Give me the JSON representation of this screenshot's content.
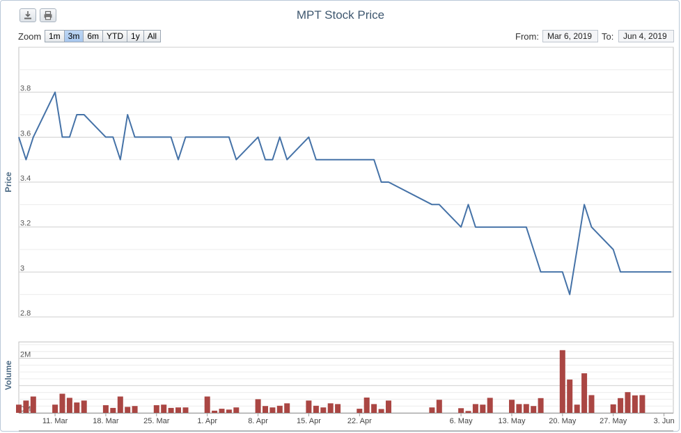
{
  "toolbar": {
    "download_icon": "download-icon",
    "print_icon": "print-icon"
  },
  "range_selector": {
    "zoom_label": "Zoom",
    "buttons": [
      "1m",
      "3m",
      "6m",
      "YTD",
      "1y",
      "All"
    ],
    "active": "3m",
    "from_label": "From:",
    "from_value": "Mar 6, 2019",
    "to_label": "To:",
    "to_value": "Jun 4, 2019"
  },
  "colors": {
    "price_line": "#4572a7",
    "volume_bar": "#aa4643",
    "grid": "#d8d8d8",
    "title": "#3e576f"
  },
  "chart_data": [
    {
      "type": "line",
      "title": "MPT Stock Price",
      "ylabel": "Price",
      "ylim": [
        2.8,
        4.0
      ],
      "yticks": [
        "2.8",
        "3",
        "3.2",
        "3.4",
        "3.6",
        "3.8"
      ],
      "grid": true,
      "x": [
        "2019-03-06",
        "2019-03-07",
        "2019-03-08",
        "2019-03-11",
        "2019-03-12",
        "2019-03-13",
        "2019-03-14",
        "2019-03-15",
        "2019-03-18",
        "2019-03-19",
        "2019-03-20",
        "2019-03-21",
        "2019-03-22",
        "2019-03-25",
        "2019-03-26",
        "2019-03-27",
        "2019-03-28",
        "2019-03-29",
        "2019-04-01",
        "2019-04-02",
        "2019-04-03",
        "2019-04-04",
        "2019-04-05",
        "2019-04-08",
        "2019-04-09",
        "2019-04-10",
        "2019-04-11",
        "2019-04-12",
        "2019-04-15",
        "2019-04-16",
        "2019-04-17",
        "2019-04-18",
        "2019-04-19",
        "2019-04-22",
        "2019-04-23",
        "2019-04-24",
        "2019-04-25",
        "2019-04-26",
        "2019-05-02",
        "2019-05-03",
        "2019-05-06",
        "2019-05-07",
        "2019-05-08",
        "2019-05-09",
        "2019-05-10",
        "2019-05-13",
        "2019-05-14",
        "2019-05-15",
        "2019-05-16",
        "2019-05-17",
        "2019-05-20",
        "2019-05-21",
        "2019-05-22",
        "2019-05-23",
        "2019-05-24",
        "2019-05-27",
        "2019-05-28",
        "2019-05-29",
        "2019-05-30",
        "2019-05-31",
        "2019-06-03",
        "2019-06-04"
      ],
      "series": [
        {
          "values": [
            3.6,
            3.5,
            3.6,
            3.8,
            3.6,
            3.6,
            3.7,
            3.7,
            3.6,
            3.6,
            3.5,
            3.7,
            3.6,
            3.6,
            3.6,
            3.6,
            3.5,
            3.6,
            3.6,
            3.6,
            3.6,
            3.6,
            3.5,
            3.6,
            3.5,
            3.5,
            3.6,
            3.5,
            3.6,
            3.5,
            3.5,
            3.5,
            3.5,
            3.5,
            3.5,
            3.5,
            3.4,
            3.4,
            3.3,
            3.3,
            3.2,
            3.3,
            3.2,
            3.2,
            3.2,
            3.2,
            3.2,
            3.2,
            3.1,
            3.0,
            3.0,
            2.9,
            3.1,
            3.3,
            3.2,
            3.1,
            3.0,
            3.0,
            3.0,
            3.0,
            3.0,
            3.0
          ]
        }
      ],
      "xtick_labels": [
        "11. Mar",
        "18. Mar",
        "25. Mar",
        "1. Apr",
        "8. Apr",
        "15. Apr",
        "22. Apr",
        "6. May",
        "13. May",
        "20. May",
        "27. May",
        "3. Jun"
      ],
      "xtick_dates": [
        "2019-03-11",
        "2019-03-18",
        "2019-03-25",
        "2019-04-01",
        "2019-04-08",
        "2019-04-15",
        "2019-04-22",
        "2019-05-06",
        "2019-05-13",
        "2019-05-20",
        "2019-05-27",
        "2019-06-03"
      ]
    },
    {
      "type": "bar",
      "ylabel": "Volume",
      "ylim": [
        0,
        2600000
      ],
      "yticks": [
        "0M",
        "2M"
      ],
      "values": [
        300000,
        450000,
        600000,
        300000,
        700000,
        550000,
        380000,
        450000,
        280000,
        180000,
        600000,
        220000,
        250000,
        280000,
        300000,
        180000,
        200000,
        200000,
        600000,
        80000,
        150000,
        120000,
        200000,
        500000,
        250000,
        200000,
        260000,
        350000,
        450000,
        260000,
        200000,
        350000,
        320000,
        150000,
        560000,
        320000,
        140000,
        450000,
        200000,
        480000,
        170000,
        70000,
        320000,
        300000,
        550000,
        480000,
        320000,
        320000,
        250000,
        540000,
        2300000,
        1220000,
        300000,
        1450000,
        650000,
        310000,
        540000,
        760000,
        640000,
        650000,
        0,
        0
      ]
    }
  ]
}
